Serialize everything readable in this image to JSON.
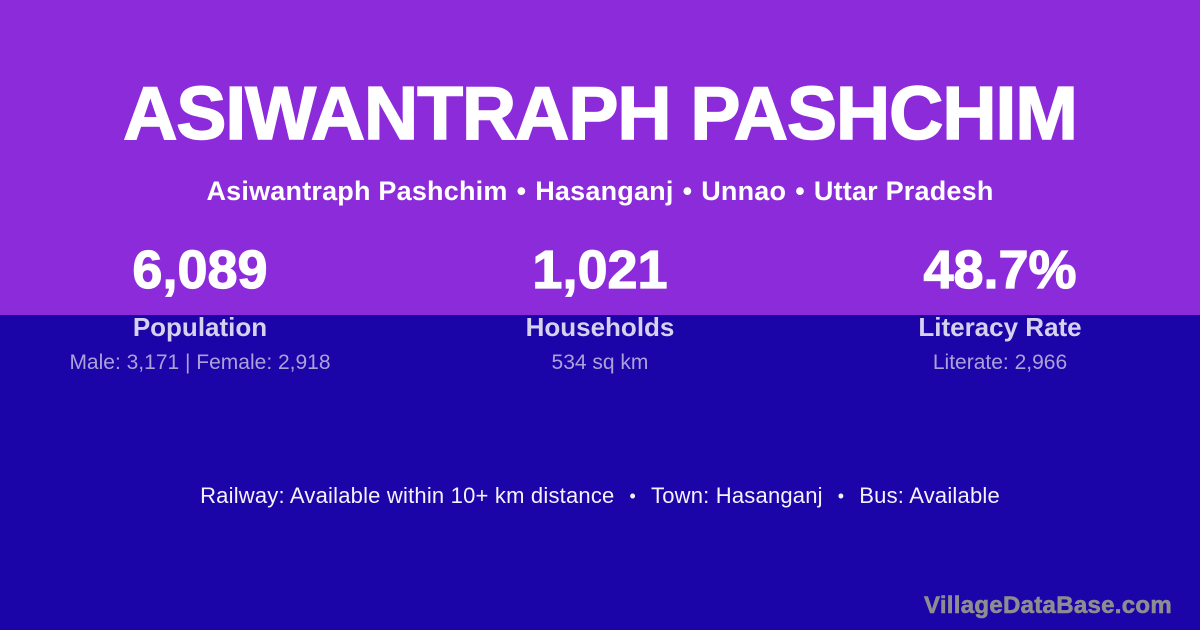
{
  "separator": "•",
  "title": "ASIWANTRAPH PASHCHIM",
  "subtitle": {
    "village": "Asiwantraph Pashchim",
    "block": "Hasanganj",
    "district": "Unnao",
    "state": "Uttar Pradesh"
  },
  "stats": [
    {
      "value": "6,089",
      "label": "Population",
      "detail": "Male: 3,171 | Female: 2,918"
    },
    {
      "value": "1,021",
      "label": "Households",
      "detail": "534 sq km"
    },
    {
      "value": "48.7%",
      "label": "Literacy Rate",
      "detail": "Literate: 2,966"
    }
  ],
  "facilities": {
    "railway": "Railway: Available within 10+ km distance",
    "town": "Town: Hasanganj",
    "bus": "Bus: Available"
  },
  "watermark": "VillageDataBase.com",
  "colors": {
    "top_background": "#8C2BD9",
    "bottom_background": "#1B04A8",
    "primary_text": "#FFFFFF",
    "label_text": "#D6D1EC",
    "detail_text": "#ABA2D8",
    "watermark_text": "#8D8D91"
  }
}
